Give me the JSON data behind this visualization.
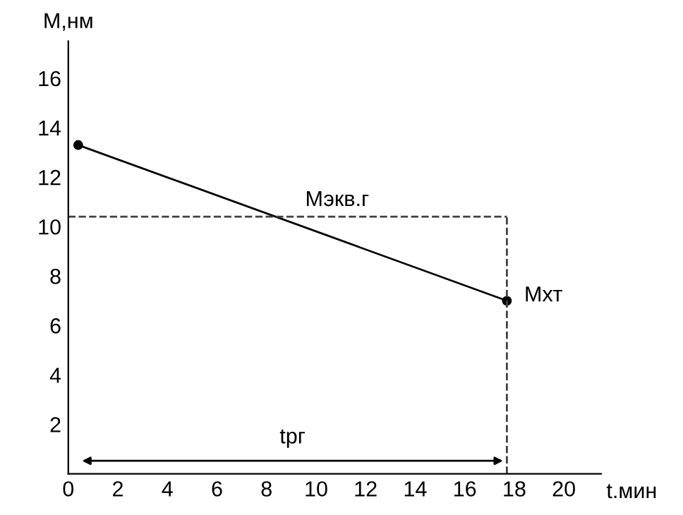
{
  "chart_data": {
    "type": "line",
    "xlabel": "t.мин",
    "ylabel": "M,нм",
    "x": [
      0.4,
      17.7
    ],
    "series": [
      {
        "color": "#000000",
        "values": [
          13.3,
          7.0
        ]
      }
    ],
    "marker": "circle",
    "line_style": "solid",
    "grid": false,
    "xlim": [
      0,
      21.5
    ],
    "ylim": [
      0,
      17.5
    ],
    "xticks": [
      0,
      2,
      4,
      6,
      8,
      10,
      12,
      14,
      16,
      18,
      20
    ],
    "yticks": [
      2,
      4,
      6,
      8,
      10,
      12,
      14,
      16
    ],
    "ref_lines": [
      {
        "axis": "y",
        "value": 10.4,
        "label": "Мэкв.г",
        "color": "#404040",
        "line_style": "dashed"
      },
      {
        "axis": "x",
        "value": 17.7,
        "label": null,
        "color": "#404040",
        "line_style": "dashed"
      }
    ],
    "annotations": [
      {
        "text": "Мхт",
        "x": 17.7,
        "y": 7.0
      },
      "tрг"
    ]
  }
}
